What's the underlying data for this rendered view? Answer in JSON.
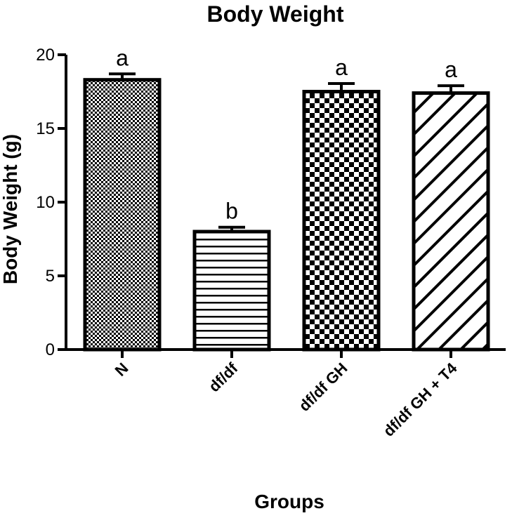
{
  "chart_data": {
    "type": "bar",
    "title": "Body Weight",
    "xlabel": "Groups",
    "ylabel": "Body Weight (g)",
    "categories": [
      "N",
      "df/df",
      "df/df GH",
      "df/df GH + T4"
    ],
    "values": [
      18.3,
      8.0,
      17.5,
      17.4
    ],
    "errors": [
      0.4,
      0.3,
      0.55,
      0.5
    ],
    "significance": [
      "a",
      "b",
      "a",
      "a"
    ],
    "patterns": [
      "fine-check",
      "horizontal-lines",
      "coarse-check",
      "diagonal-lines"
    ],
    "ylim": [
      0,
      20
    ],
    "yticks": [
      0,
      5,
      10,
      15,
      20
    ],
    "grid": false,
    "colors": {
      "bar_stroke": "#000000",
      "bar_fill": "#ffffff",
      "pattern": "#000000"
    }
  }
}
